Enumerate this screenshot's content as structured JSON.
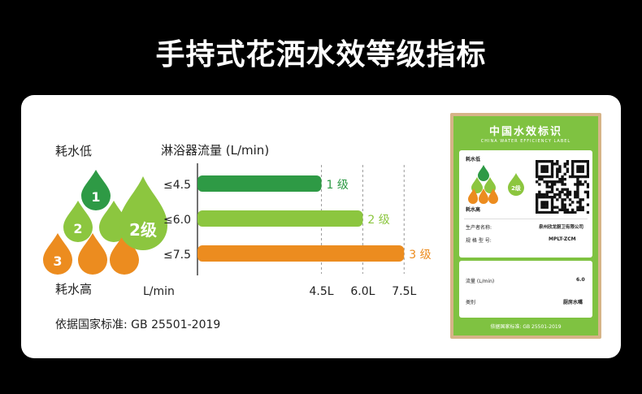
{
  "page_title": "手持式花洒水效等级指标",
  "legend": {
    "low_label": "耗水低",
    "high_label": "耗水高",
    "badge": "2级",
    "drop_numbers": [
      "1",
      "2",
      "3"
    ]
  },
  "standard_text": "依据国家标准:  GB 25501-2019",
  "chart_data": {
    "type": "bar",
    "orientation": "horizontal",
    "title": "淋浴器流量 (L/min)",
    "categories": [
      "≤4.5",
      "≤6.0",
      "≤7.5"
    ],
    "values": [
      4.5,
      6.0,
      7.5
    ],
    "data_labels": [
      "1 级",
      "2 级",
      "3 级"
    ],
    "colors": [
      "#2e9a45",
      "#8cc63f",
      "#ec8c1f"
    ],
    "xlabel": "L/min",
    "xticks": [
      4.5,
      6.0,
      7.5
    ],
    "xtick_labels": [
      "4.5L",
      "6.0L",
      "7.5L"
    ],
    "xlim": [
      0,
      8.2
    ],
    "grid": "dashed vertical at ticks"
  },
  "label": {
    "title": "中国水效标识",
    "subtitle": "CHINA WATER EFFICIENCY LABEL",
    "low": "耗水低",
    "high": "耗水高",
    "grade": "2级",
    "producer_key": "生产者名称:",
    "producer_val": "泉州欣龙厨卫有限公司",
    "model_key": "规 格 型 号:",
    "model_val": "MPLT-ZCM",
    "flow_key": "流量  (L/min)",
    "flow_val": "6.0",
    "category_key": "类别",
    "category_val": "厨房水嘴",
    "footer": "依据国家标准:  GB 25501-2019"
  },
  "colors": {
    "green_dark": "#2e9a45",
    "green_light": "#8cc63f",
    "orange": "#ec8c1f",
    "label_green": "#7fc241",
    "frame": "#d6b488"
  }
}
